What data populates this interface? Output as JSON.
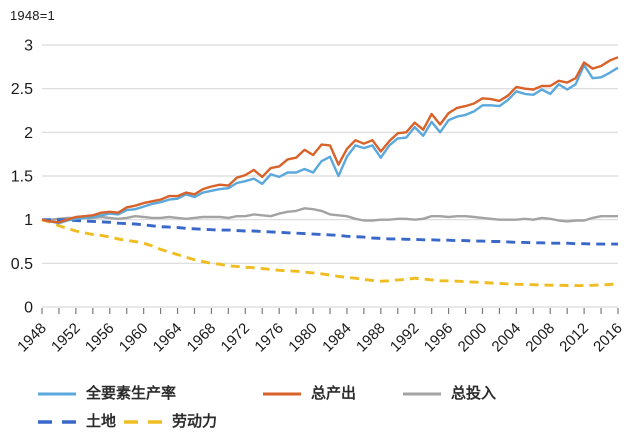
{
  "chart_data": {
    "type": "line",
    "title": "",
    "note": "1948=1",
    "x_range": [
      1948,
      2016
    ],
    "x_step": 1,
    "x_major_tick_step": 4,
    "x_minor_tick_step": 2,
    "x_tick_labels": [
      "1948",
      "1952",
      "1956",
      "1960",
      "1964",
      "1968",
      "1972",
      "1976",
      "1980",
      "1984",
      "1988",
      "1992",
      "1996",
      "2000",
      "2004",
      "2008",
      "2012",
      "2016"
    ],
    "ylim": [
      0,
      3
    ],
    "y_ticks": [
      0,
      0.5,
      1,
      1.5,
      2,
      2.5,
      3
    ],
    "y_tick_labels": [
      "0",
      "0.5",
      "1",
      "1.5",
      "2",
      "2.5",
      "3"
    ],
    "grid": true,
    "legend_position": "bottom",
    "grid_color": "#d9d9d9",
    "axis_text_color": "#1a1a1a",
    "tick_color": "#7a7a7a",
    "z_order": [
      "input",
      "land",
      "labor",
      "tfp",
      "output"
    ],
    "series": [
      {
        "id": "tfp",
        "name": "全要素生产率",
        "color": "#5BA8DC",
        "style": "solid",
        "values": [
          1.0,
          0.98,
          0.96,
          0.99,
          1.01,
          1.02,
          1.03,
          1.05,
          1.07,
          1.06,
          1.11,
          1.12,
          1.15,
          1.18,
          1.2,
          1.23,
          1.24,
          1.29,
          1.26,
          1.31,
          1.33,
          1.35,
          1.36,
          1.42,
          1.44,
          1.47,
          1.41,
          1.52,
          1.49,
          1.54,
          1.54,
          1.58,
          1.54,
          1.67,
          1.72,
          1.5,
          1.72,
          1.85,
          1.82,
          1.85,
          1.71,
          1.85,
          1.93,
          1.94,
          2.06,
          1.96,
          2.12,
          2.0,
          2.14,
          2.18,
          2.2,
          2.24,
          2.31,
          2.31,
          2.3,
          2.37,
          2.47,
          2.44,
          2.43,
          2.49,
          2.44,
          2.55,
          2.49,
          2.55,
          2.77,
          2.62,
          2.63,
          2.68,
          2.74
        ]
      },
      {
        "id": "output",
        "name": "总产出",
        "color": "#D8622A",
        "style": "solid",
        "values": [
          1.0,
          0.98,
          0.97,
          1.0,
          1.03,
          1.04,
          1.05,
          1.08,
          1.09,
          1.08,
          1.14,
          1.16,
          1.19,
          1.21,
          1.23,
          1.27,
          1.27,
          1.31,
          1.29,
          1.35,
          1.38,
          1.4,
          1.39,
          1.48,
          1.51,
          1.57,
          1.49,
          1.59,
          1.61,
          1.69,
          1.71,
          1.8,
          1.74,
          1.86,
          1.85,
          1.63,
          1.81,
          1.91,
          1.87,
          1.91,
          1.78,
          1.9,
          1.99,
          2.0,
          2.11,
          2.03,
          2.21,
          2.09,
          2.22,
          2.28,
          2.3,
          2.33,
          2.39,
          2.38,
          2.36,
          2.42,
          2.52,
          2.5,
          2.49,
          2.53,
          2.53,
          2.59,
          2.57,
          2.62,
          2.8,
          2.73,
          2.76,
          2.82,
          2.86
        ]
      },
      {
        "id": "input",
        "name": "总投入",
        "color": "#A3A3A3",
        "style": "solid",
        "values": [
          1.0,
          1.0,
          1.01,
          1.02,
          1.02,
          1.02,
          1.02,
          1.03,
          1.02,
          1.01,
          1.02,
          1.04,
          1.03,
          1.02,
          1.02,
          1.03,
          1.02,
          1.01,
          1.02,
          1.03,
          1.03,
          1.03,
          1.02,
          1.04,
          1.04,
          1.06,
          1.05,
          1.04,
          1.07,
          1.09,
          1.1,
          1.13,
          1.12,
          1.1,
          1.06,
          1.05,
          1.04,
          1.01,
          0.99,
          0.99,
          1.0,
          1.0,
          1.01,
          1.01,
          1.0,
          1.01,
          1.04,
          1.04,
          1.03,
          1.04,
          1.04,
          1.03,
          1.02,
          1.01,
          1.0,
          1.0,
          1.0,
          1.01,
          1.0,
          1.02,
          1.01,
          0.99,
          0.98,
          0.99,
          0.99,
          1.02,
          1.04,
          1.04,
          1.04
        ]
      },
      {
        "id": "land",
        "name": "土地",
        "color": "#3A68C8",
        "style": "dashed",
        "values": [
          1.0,
          1.0,
          1.0,
          0.995,
          0.99,
          0.985,
          0.98,
          0.975,
          0.97,
          0.96,
          0.955,
          0.95,
          0.94,
          0.93,
          0.92,
          0.915,
          0.91,
          0.9,
          0.895,
          0.89,
          0.885,
          0.88,
          0.88,
          0.875,
          0.87,
          0.87,
          0.865,
          0.86,
          0.855,
          0.85,
          0.845,
          0.84,
          0.835,
          0.83,
          0.825,
          0.82,
          0.81,
          0.805,
          0.8,
          0.79,
          0.785,
          0.78,
          0.78,
          0.775,
          0.775,
          0.77,
          0.77,
          0.765,
          0.765,
          0.76,
          0.76,
          0.755,
          0.755,
          0.75,
          0.75,
          0.745,
          0.74,
          0.74,
          0.735,
          0.735,
          0.73,
          0.73,
          0.73,
          0.725,
          0.725,
          0.72,
          0.72,
          0.72,
          0.72
        ]
      },
      {
        "id": "labor",
        "name": "劳动力",
        "color": "#EFBD22",
        "style": "dashed",
        "values": [
          1.0,
          0.97,
          0.93,
          0.9,
          0.87,
          0.85,
          0.83,
          0.82,
          0.8,
          0.78,
          0.76,
          0.75,
          0.73,
          0.7,
          0.66,
          0.63,
          0.6,
          0.57,
          0.54,
          0.52,
          0.5,
          0.49,
          0.47,
          0.465,
          0.455,
          0.45,
          0.44,
          0.43,
          0.42,
          0.415,
          0.41,
          0.4,
          0.39,
          0.38,
          0.365,
          0.35,
          0.34,
          0.33,
          0.315,
          0.305,
          0.295,
          0.3,
          0.31,
          0.315,
          0.33,
          0.32,
          0.31,
          0.3,
          0.3,
          0.295,
          0.29,
          0.285,
          0.28,
          0.275,
          0.27,
          0.265,
          0.26,
          0.258,
          0.255,
          0.252,
          0.25,
          0.248,
          0.246,
          0.245,
          0.245,
          0.248,
          0.252,
          0.258,
          0.265
        ]
      }
    ]
  }
}
